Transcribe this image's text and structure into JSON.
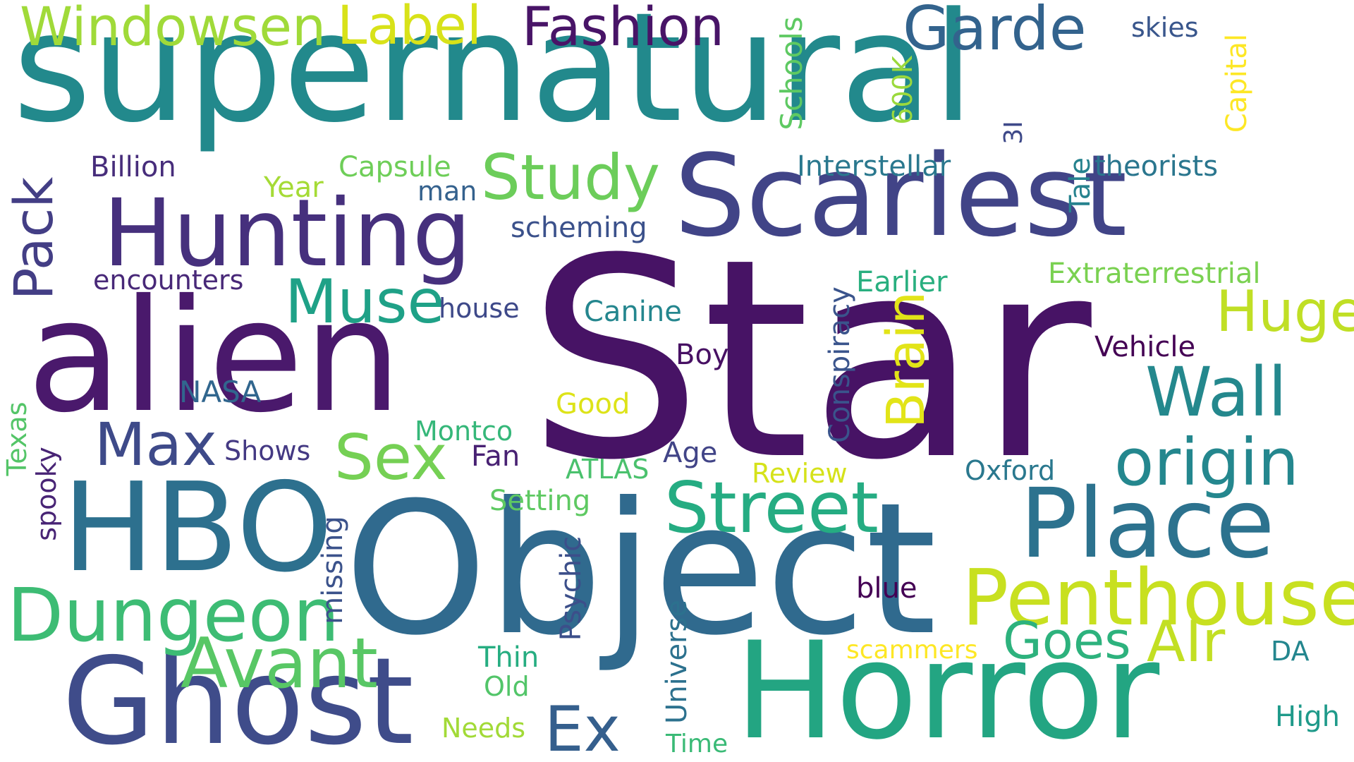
{
  "words": [
    {
      "text": "supernatural",
      "color": "#22898c"
    },
    {
      "text": "Star",
      "color": "#471365"
    },
    {
      "text": "Object",
      "color": "#306a8e"
    },
    {
      "text": "alien",
      "color": "#4a196c"
    },
    {
      "text": "Horror",
      "color": "#23a582"
    },
    {
      "text": "Scariest",
      "color": "#414487"
    },
    {
      "text": "Ghost",
      "color": "#3f4c8a"
    },
    {
      "text": "HBO",
      "color": "#2d708e"
    },
    {
      "text": "Hunting",
      "color": "#46307d"
    },
    {
      "text": "Place",
      "color": "#2c728e"
    },
    {
      "text": "Penthouse",
      "color": "#c8e020"
    },
    {
      "text": "Street",
      "color": "#25ac82"
    },
    {
      "text": "Dungeon",
      "color": "#3dbc74"
    },
    {
      "text": "origin",
      "color": "#24878e"
    },
    {
      "text": "Avant",
      "color": "#58c765"
    },
    {
      "text": "Wall",
      "color": "#24888d"
    },
    {
      "text": "Garde",
      "color": "#33638d"
    },
    {
      "text": "Fashion",
      "color": "#481467"
    },
    {
      "text": "Label",
      "color": "#d8e219"
    },
    {
      "text": "Windowsen",
      "color": "#a0da39"
    },
    {
      "text": "Muse",
      "color": "#1fa187"
    },
    {
      "text": "Study",
      "color": "#6ccd5a"
    },
    {
      "text": "Max",
      "color": "#3e4a89"
    },
    {
      "text": "Sex",
      "color": "#75d054"
    },
    {
      "text": "Huge",
      "color": "#c0df25"
    },
    {
      "text": "AIr",
      "color": "#c2df23"
    },
    {
      "text": "Goes",
      "color": "#2db27d"
    },
    {
      "text": "Ex",
      "color": "#355f8d"
    },
    {
      "text": "Brain",
      "color": "#e2e418"
    },
    {
      "text": "Pack",
      "color": "#433e85"
    },
    {
      "text": "Canine",
      "color": "#24868e"
    },
    {
      "text": "Extraterrestrial",
      "color": "#7ad151"
    },
    {
      "text": "Earlier",
      "color": "#29af7f"
    },
    {
      "text": "Vehicle",
      "color": "#440154"
    },
    {
      "text": "Interstellar",
      "color": "#2a788e"
    },
    {
      "text": "theorists",
      "color": "#2a768e"
    },
    {
      "text": "scheming",
      "color": "#3b518b"
    },
    {
      "text": "encounters",
      "color": "#482878"
    },
    {
      "text": "house",
      "color": "#3e4989"
    },
    {
      "text": "Billion",
      "color": "#472d7b"
    },
    {
      "text": "Year",
      "color": "#a5db36"
    },
    {
      "text": "Capsule",
      "color": "#6ece58"
    },
    {
      "text": "man",
      "color": "#34618d"
    },
    {
      "text": "skies",
      "color": "#39568c"
    },
    {
      "text": "Boy",
      "color": "#471063"
    },
    {
      "text": "NASA",
      "color": "#31668e"
    },
    {
      "text": "Good",
      "color": "#dde318"
    },
    {
      "text": "Montco",
      "color": "#35b779"
    },
    {
      "text": "Fan",
      "color": "#482173"
    },
    {
      "text": "Age",
      "color": "#414487"
    },
    {
      "text": "Shows",
      "color": "#443983"
    },
    {
      "text": "ATLAS",
      "color": "#4ac16d"
    },
    {
      "text": "Review",
      "color": "#d5e21a"
    },
    {
      "text": "Oxford",
      "color": "#2a788e"
    },
    {
      "text": "Setting",
      "color": "#5ec962"
    },
    {
      "text": "blue",
      "color": "#440154"
    },
    {
      "text": "Thin",
      "color": "#26ad81"
    },
    {
      "text": "Old",
      "color": "#52c569"
    },
    {
      "text": "Needs",
      "color": "#a2da37"
    },
    {
      "text": "Time",
      "color": "#3aba76"
    },
    {
      "text": "scammers",
      "color": "#fde725"
    },
    {
      "text": "DA",
      "color": "#24868e"
    },
    {
      "text": "High",
      "color": "#1f9a8a"
    },
    {
      "text": "Schools",
      "color": "#5ec962"
    },
    {
      "text": "600K",
      "color": "#9bd93c"
    },
    {
      "text": "3I",
      "color": "#3e4989"
    },
    {
      "text": "Capital",
      "color": "#fde725"
    },
    {
      "text": "Tale",
      "color": "#26828e"
    },
    {
      "text": "Conspiracy",
      "color": "#3a548c"
    },
    {
      "text": "Texas",
      "color": "#54c568"
    },
    {
      "text": "spooky",
      "color": "#482475"
    },
    {
      "text": "missing",
      "color": "#3b528b"
    },
    {
      "text": "Psychic",
      "color": "#3c4f8a"
    },
    {
      "text": "Universe",
      "color": "#2c718e"
    }
  ]
}
